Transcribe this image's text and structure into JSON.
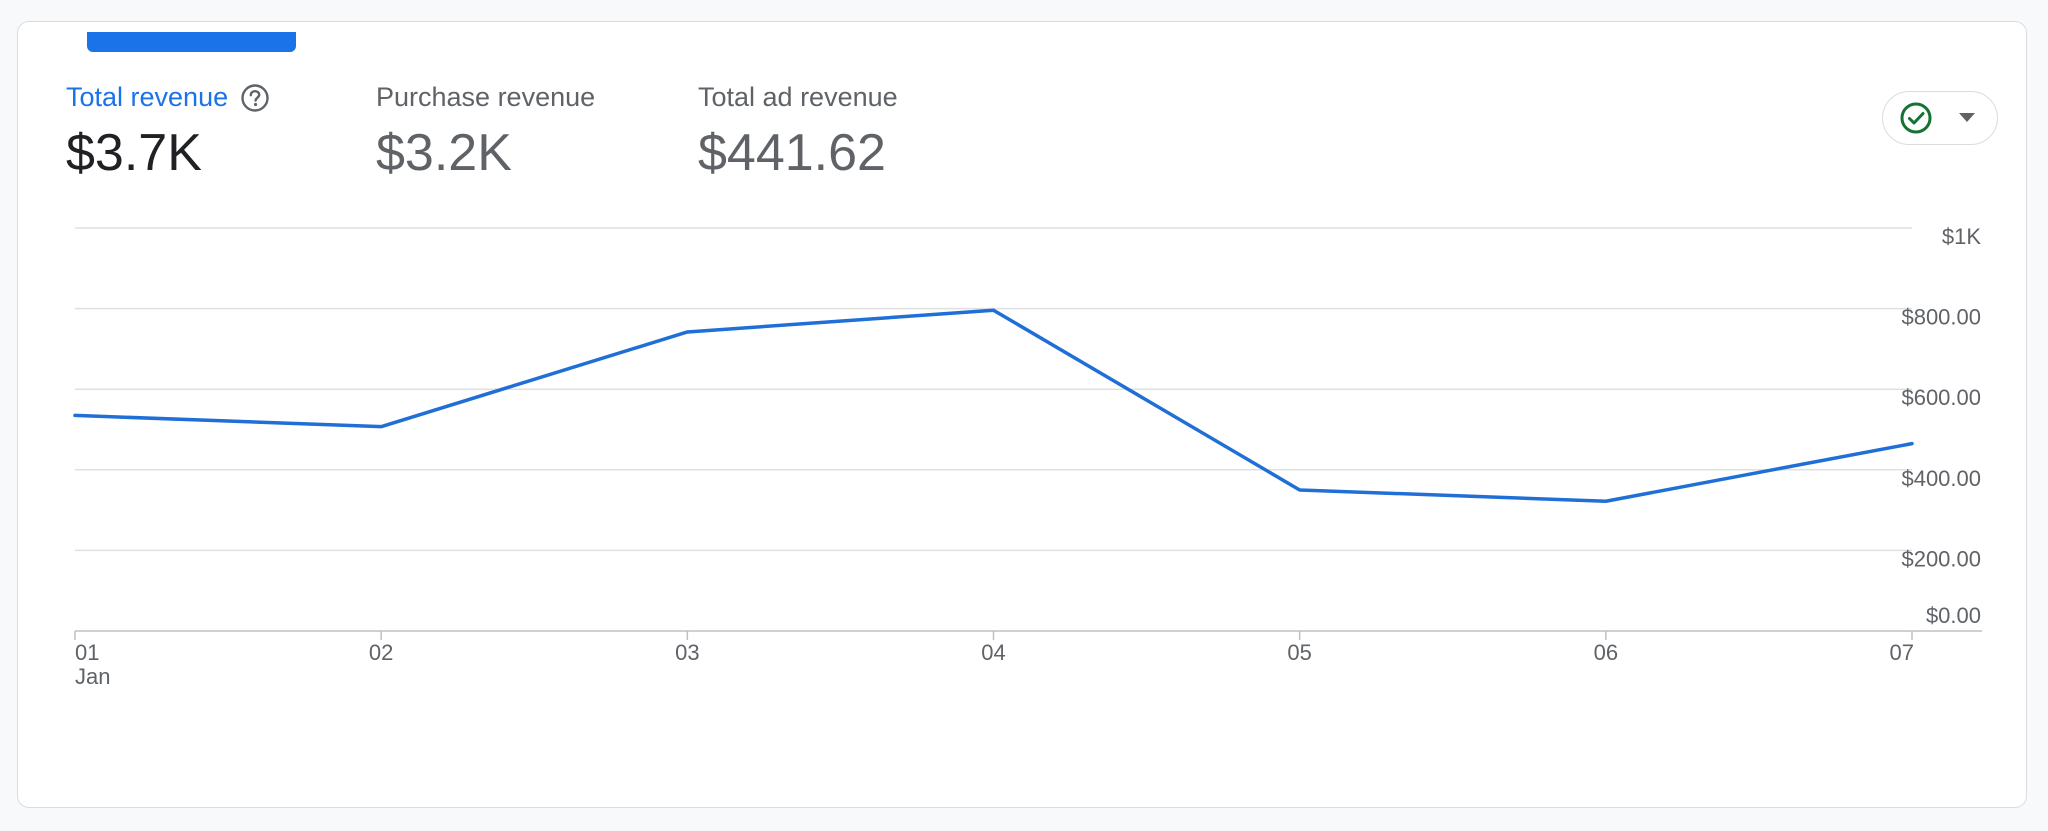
{
  "metrics": [
    {
      "label": "Total revenue",
      "value": "$3.7K",
      "active": true
    },
    {
      "label": "Purchase revenue",
      "value": "$3.2K",
      "active": false
    },
    {
      "label": "Total ad revenue",
      "value": "$441.62",
      "active": false
    }
  ],
  "icons": {
    "help": "help-circle-icon",
    "status": "check-circle-icon",
    "dropdown": "caret-down-icon"
  },
  "colors": {
    "accent": "#1a73e8",
    "line": "#1f6fd6",
    "status_green": "#137333",
    "grid": "#e0e0e0"
  },
  "chart_data": {
    "type": "line",
    "title": "",
    "xlabel": "",
    "ylabel": "",
    "categories": [
      "01",
      "02",
      "03",
      "04",
      "05",
      "06",
      "07"
    ],
    "category_sublabels": [
      "Jan",
      "",
      "",
      "",
      "",
      "",
      ""
    ],
    "series": [
      {
        "values": [
          535,
          507,
          742,
          796,
          350,
          322,
          465
        ]
      }
    ],
    "y_ticks": [
      {
        "value": 0,
        "label": "$0.00"
      },
      {
        "value": 200,
        "label": "$200.00"
      },
      {
        "value": 400,
        "label": "$400.00"
      },
      {
        "value": 600,
        "label": "$600.00"
      },
      {
        "value": 800,
        "label": "$800.00"
      },
      {
        "value": 1000,
        "label": "$1K"
      }
    ],
    "ylim": [
      0,
      1000
    ],
    "grid": true,
    "y_axis_position": "right"
  }
}
